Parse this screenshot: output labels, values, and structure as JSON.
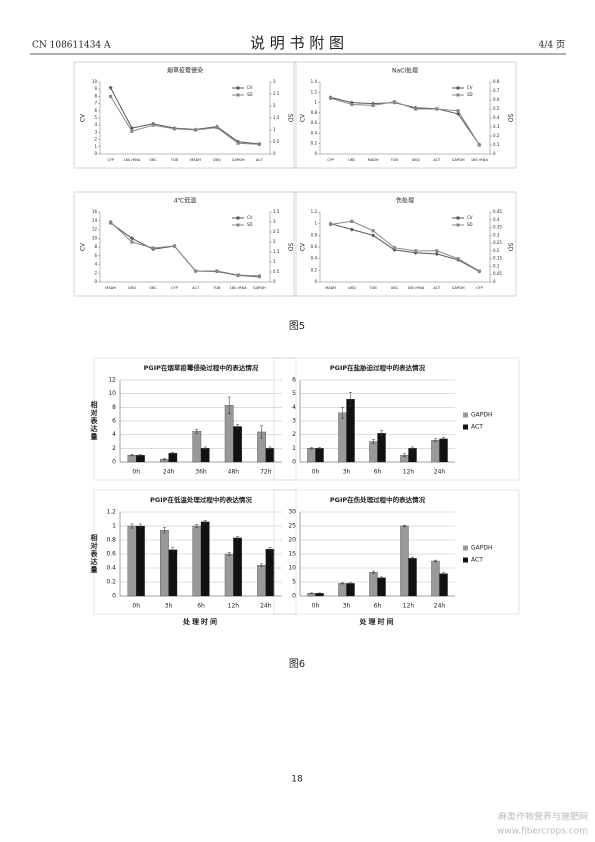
{
  "header": {
    "left": "CN 108611434 A",
    "title": "说 明 书 附 图",
    "right": "4/4 页"
  },
  "figures": [
    {
      "caption": "图5"
    },
    {
      "caption": "图6"
    }
  ],
  "page_number": "18",
  "watermark": [
    "麻类作物营养与施肥网",
    "www.fibercrops.com"
  ],
  "chart_data": [
    {
      "type": "line",
      "title": "烟草疫霉侵染",
      "ylabel": "CV",
      "y2label": "SD",
      "categories": [
        "CYP",
        "18S rRNA",
        "UBC",
        "TUB",
        "MADH",
        "UBQ",
        "GAPDH",
        "ACT"
      ],
      "ylim": [
        0,
        10
      ],
      "yticks": [
        0,
        1,
        2,
        3,
        4,
        5,
        6,
        7,
        8,
        9,
        10
      ],
      "y2lim": [
        0,
        3
      ],
      "y2ticks": [
        0,
        0.5,
        1,
        1.5,
        2,
        2.5,
        3
      ],
      "legend": "top-right",
      "series": [
        {
          "name": "CV",
          "color": "#555555",
          "marker": "diamond",
          "values": [
            9.2,
            3.6,
            4.2,
            3.6,
            3.4,
            3.8,
            1.7,
            1.4
          ]
        },
        {
          "name": "SD",
          "color": "#888888",
          "marker": "square",
          "axis": "y2",
          "values": [
            2.4,
            0.95,
            1.2,
            1.05,
            1.0,
            1.1,
            0.45,
            0.4
          ]
        }
      ]
    },
    {
      "type": "line",
      "title": "NaCl处理",
      "ylabel": "CV",
      "y2label": "SD",
      "categories": [
        "CYP",
        "UBC",
        "MADH",
        "TUB",
        "UBQ",
        "ACT",
        "GAPDH",
        "18S rRNA"
      ],
      "ylim": [
        0,
        1.4
      ],
      "yticks": [
        0,
        0.2,
        0.4,
        0.6,
        0.8,
        1,
        1.2,
        1.4
      ],
      "y2lim": [
        0,
        0.8
      ],
      "y2ticks": [
        0,
        0.1,
        0.2,
        0.3,
        0.4,
        0.5,
        0.6,
        0.7,
        0.8
      ],
      "legend": "top-right",
      "series": [
        {
          "name": "CV",
          "color": "#555555",
          "marker": "diamond",
          "values": [
            1.1,
            1.0,
            0.98,
            1.0,
            0.9,
            0.88,
            0.78,
            0.18
          ]
        },
        {
          "name": "SD",
          "color": "#888888",
          "marker": "square",
          "axis": "y2",
          "values": [
            0.62,
            0.55,
            0.54,
            0.58,
            0.5,
            0.5,
            0.48,
            0.1
          ]
        }
      ]
    },
    {
      "type": "line",
      "title": "4℃低温",
      "ylabel": "CV",
      "y2label": "SD",
      "categories": [
        "MADH",
        "UBQ",
        "UBC",
        "CYP",
        "ACT",
        "TUB",
        "18S rRNA",
        "GAPDH"
      ],
      "ylim": [
        0,
        16
      ],
      "yticks": [
        0,
        2,
        4,
        6,
        8,
        10,
        12,
        14,
        16
      ],
      "y2lim": [
        0,
        3.5
      ],
      "y2ticks": [
        0,
        0.5,
        1,
        1.5,
        2,
        2.5,
        3,
        3.5
      ],
      "legend": "top-right",
      "series": [
        {
          "name": "CV",
          "color": "#555555",
          "marker": "diamond",
          "values": [
            13.5,
            10,
            7.5,
            8.2,
            2.5,
            2.4,
            1.5,
            1.2
          ]
        },
        {
          "name": "SD",
          "color": "#888888",
          "marker": "square",
          "axis": "y2",
          "values": [
            3.0,
            2.0,
            1.7,
            1.8,
            0.55,
            0.55,
            0.35,
            0.3
          ]
        }
      ]
    },
    {
      "type": "line",
      "title": "伤处理",
      "ylabel": "CV",
      "y2label": "SD",
      "categories": [
        "MADH",
        "UBQ",
        "TUB",
        "UBC",
        "18S rRNA",
        "ACT",
        "GAPDH",
        "CYP"
      ],
      "ylim": [
        0,
        1.2
      ],
      "yticks": [
        0,
        0.2,
        0.4,
        0.6,
        0.8,
        1,
        1.2
      ],
      "y2lim": [
        0,
        0.45
      ],
      "y2ticks": [
        0,
        0.05,
        0.1,
        0.15,
        0.2,
        0.25,
        0.3,
        0.35,
        0.4,
        0.45
      ],
      "legend": "top-right",
      "series": [
        {
          "name": "CV",
          "color": "#555555",
          "marker": "diamond",
          "values": [
            1.0,
            0.9,
            0.8,
            0.55,
            0.5,
            0.48,
            0.38,
            0.18
          ]
        },
        {
          "name": "SD",
          "color": "#888888",
          "marker": "square",
          "axis": "y2",
          "values": [
            0.37,
            0.39,
            0.33,
            0.22,
            0.2,
            0.2,
            0.15,
            0.07
          ]
        }
      ]
    },
    {
      "type": "bar",
      "title": "PGIP在烟草疫霉侵染过程中的表达情况",
      "ylabel": "相对表达量",
      "categories": [
        "0h",
        "24h",
        "36h",
        "48h",
        "72h"
      ],
      "ylim": [
        0,
        12
      ],
      "yticks": [
        0,
        2,
        4,
        6,
        8,
        10,
        12
      ],
      "grid": true,
      "series": [
        {
          "color": "#999999",
          "values": [
            1,
            0.4,
            4.5,
            8.3,
            4.4
          ],
          "errors": [
            0.1,
            0.1,
            0.3,
            1.2,
            0.9
          ]
        },
        {
          "color": "#111111",
          "values": [
            1,
            1.3,
            2.0,
            5.2,
            2.0
          ],
          "errors": [
            0.1,
            0.1,
            0.2,
            0.3,
            0.2
          ]
        }
      ]
    },
    {
      "type": "bar",
      "title": "PGIP在盐胁迫过程中的表达情况",
      "categories": [
        "0h",
        "3h",
        "6h",
        "12h",
        "24h"
      ],
      "ylim": [
        0,
        6
      ],
      "yticks": [
        0,
        1,
        2,
        3,
        4,
        5,
        6
      ],
      "grid": true,
      "legend": "right",
      "series": [
        {
          "name": "GAPDH",
          "color": "#999999",
          "values": [
            1,
            3.6,
            1.5,
            0.5,
            1.6
          ],
          "errors": [
            0.05,
            0.4,
            0.15,
            0.1,
            0.1
          ]
        },
        {
          "name": "ACT",
          "color": "#111111",
          "values": [
            1,
            4.6,
            2.1,
            1.0,
            1.7
          ],
          "errors": [
            0.05,
            0.5,
            0.2,
            0.1,
            0.1
          ]
        }
      ]
    },
    {
      "type": "bar",
      "title": "PGIP在低温处理过程中的表达情况",
      "ylabel": "相对表达量",
      "xlabel": "处理时间",
      "categories": [
        "0h",
        "3h",
        "6h",
        "12h",
        "24h"
      ],
      "ylim": [
        0,
        1.2
      ],
      "yticks": [
        0,
        0.2,
        0.4,
        0.6,
        0.8,
        1,
        1.2
      ],
      "grid": true,
      "series": [
        {
          "color": "#999999",
          "values": [
            1,
            0.94,
            1.0,
            0.6,
            0.44
          ],
          "errors": [
            0.03,
            0.04,
            0.02,
            0.02,
            0.02
          ]
        },
        {
          "color": "#111111",
          "values": [
            1,
            0.66,
            1.06,
            0.83,
            0.67
          ],
          "errors": [
            0.03,
            0.03,
            0.02,
            0.02,
            0.02
          ]
        }
      ]
    },
    {
      "type": "bar",
      "title": "PGIP在伤处理过程中的表达情况",
      "xlabel": "处理时间",
      "categories": [
        "0h",
        "3h",
        "6h",
        "12h",
        "24h"
      ],
      "ylim": [
        0,
        30
      ],
      "yticks": [
        0,
        5,
        10,
        15,
        20,
        25,
        30
      ],
      "grid": true,
      "legend": "right",
      "series": [
        {
          "name": "GAPDH",
          "color": "#999999",
          "values": [
            1,
            4.5,
            8.5,
            25,
            12.5
          ],
          "errors": [
            0.1,
            0.2,
            0.4,
            0.3,
            0.3
          ]
        },
        {
          "name": "ACT",
          "color": "#111111",
          "values": [
            1,
            4.5,
            6.5,
            13.5,
            8
          ],
          "errors": [
            0.1,
            0.2,
            0.3,
            0.3,
            0.3
          ]
        }
      ]
    }
  ]
}
